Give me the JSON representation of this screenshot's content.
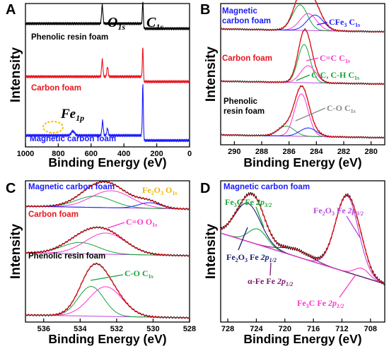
{
  "figure": {
    "intensity_label": "Intensity",
    "binding_label": "Binding Energy (eV)"
  },
  "chart_data": [
    {
      "panel": "A",
      "type": "line",
      "xlabel": "Binding Energy (eV)",
      "ylabel": "Intensity",
      "xlim": [
        1000,
        0
      ],
      "xticks": [
        "1000",
        "800",
        "600",
        "400",
        "200",
        "0"
      ],
      "peak_labels": [
        {
          "text": "O",
          "sub": "1s",
          "x": 530
        },
        {
          "text": "C",
          "sub": "1s",
          "x": 284
        },
        {
          "text": "Fe",
          "sub": "1p",
          "x": 711
        }
      ],
      "series": [
        {
          "name": "Phenolic resin foam",
          "color": "#000000",
          "baseline": 0.86,
          "peaks": [
            {
              "x": 532,
              "h": 0.13,
              "w": 4
            },
            {
              "x": 284.5,
              "h": 0.16,
              "w": 3
            }
          ]
        },
        {
          "name": "Carbon foam",
          "color": "#e8141c",
          "baseline": 0.49,
          "peaks": [
            {
              "x": 532,
              "h": 0.12,
              "w": 4
            },
            {
              "x": 500,
              "h": 0.07,
              "w": 4
            },
            {
              "x": 284.5,
              "h": 0.21,
              "w": 3
            }
          ]
        },
        {
          "name": "Magnetic carbon foam",
          "color": "#1a1aff",
          "baseline": 0.08,
          "peaks": [
            {
              "x": 711,
              "h": 0.03,
              "w": 10
            },
            {
              "x": 530,
              "h": 0.1,
              "w": 4
            },
            {
              "x": 500,
              "h": 0.05,
              "w": 4
            },
            {
              "x": 284.5,
              "h": 0.36,
              "w": 3
            }
          ]
        }
      ]
    },
    {
      "panel": "B",
      "type": "line",
      "xlabel": "Binding Energy (eV)",
      "ylabel": "Intensity",
      "xlim": [
        291,
        279
      ],
      "xticks": [
        "290",
        "288",
        "286",
        "284",
        "282",
        "280"
      ],
      "series": [
        {
          "name": "Magnetic carbon foam",
          "baseline": 0.8,
          "components": [
            {
              "label": "",
              "x": 285.2,
              "h": 0.18,
              "w": 0.55
            },
            {
              "label": "",
              "x": 284.6,
              "h": 0.12,
              "w": 0.6
            },
            {
              "label": "CFe3 C1s",
              "x": 284.1,
              "h": 0.11,
              "w": 0.6
            }
          ]
        },
        {
          "name": "Carbon foam",
          "baseline": 0.43,
          "components": [
            {
              "label": "C=C C1s",
              "x": 284.9,
              "h": 0.27,
              "w": 0.45
            },
            {
              "label": "C-C, C-H C1s",
              "x": 284.6,
              "h": 0.12,
              "w": 0.55
            }
          ]
        },
        {
          "name": "Phenolic resin foam",
          "baseline": 0.05,
          "components": [
            {
              "label": "",
              "x": 286.2,
              "h": 0.07,
              "w": 0.6
            },
            {
              "label": "",
              "x": 285.1,
              "h": 0.3,
              "w": 0.5
            },
            {
              "label": "C-O C1s",
              "x": 284.6,
              "h": 0.06,
              "w": 0.6
            }
          ]
        }
      ]
    },
    {
      "panel": "C",
      "type": "line",
      "xlabel": "Binding Energy (eV)",
      "ylabel": "Intensity",
      "xlim": [
        537,
        528
      ],
      "xticks": [
        "536",
        "534",
        "532",
        "530",
        "528"
      ],
      "series": [
        {
          "name": "Magnetic carbon foam",
          "baseline": 0.8,
          "components": [
            {
              "label": "",
              "x": 533.2,
              "h": 0.08,
              "w": 1.0
            },
            {
              "label": "",
              "x": 532.3,
              "h": 0.12,
              "w": 1.1
            },
            {
              "label": "Fe2O3 O1s",
              "x": 530.2,
              "h": 0.04,
              "w": 0.6
            }
          ]
        },
        {
          "name": "Carbon foam",
          "baseline": 0.47,
          "components": [
            {
              "label": "",
              "x": 534.0,
              "h": 0.08,
              "w": 1.0
            },
            {
              "label": "C=O O1s",
              "x": 532.6,
              "h": 0.15,
              "w": 1.1
            }
          ]
        },
        {
          "name": "Phenolic resin foam",
          "baseline": 0.03,
          "components": [
            {
              "label": "C-O C1s",
              "x": 533.4,
              "h": 0.21,
              "w": 0.7
            },
            {
              "label": "",
              "x": 532.6,
              "h": 0.21,
              "w": 0.9
            }
          ]
        }
      ]
    },
    {
      "panel": "D",
      "type": "line",
      "xlabel": "Binding Energy (eV)",
      "ylabel": "Intensity",
      "xlim": [
        729,
        706
      ],
      "xticks": [
        "728",
        "724",
        "720",
        "716",
        "712",
        "708"
      ],
      "series_name": "Magnetic carbon foam",
      "components": [
        {
          "label": "Fe3C Fe 2p3/2",
          "color": "#1aa33a",
          "x": 723.8,
          "h": 0.11,
          "w": 1.3
        },
        {
          "label": "Fe2O3 Fe 2p3/2",
          "color": "#b84ad8",
          "x": 711.3,
          "h": 0.54,
          "w": 1.6
        },
        {
          "label": "Fe2O3 Fe 2p1/2",
          "color": "#1b1b7a",
          "x": 725.2,
          "h": 0.27,
          "w": 1.8
        },
        {
          "label": "α-Fe Fe 2p1/2",
          "color": "#7a1a6a",
          "x": 718.5,
          "h": 0.05,
          "w": 2.0
        },
        {
          "label": "Fe3C Fe 2p1/2",
          "color": "#ff33cc",
          "x": 709.2,
          "h": 0.06,
          "w": 1.0
        }
      ]
    }
  ]
}
